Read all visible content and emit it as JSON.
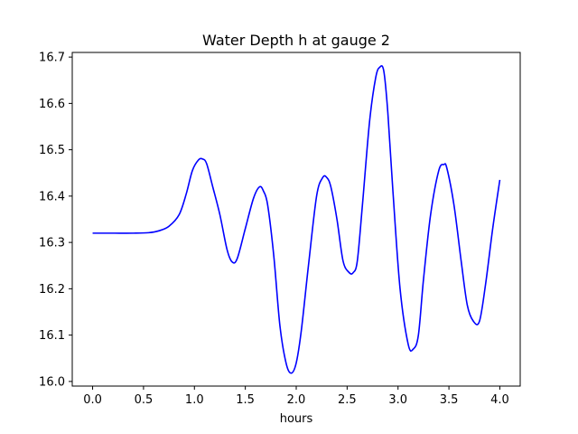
{
  "chart_data": {
    "type": "line",
    "title": "Water Depth h at gauge 2",
    "xlabel": "hours",
    "ylabel": "",
    "xlim": [
      -0.2,
      4.2
    ],
    "ylim": [
      15.99,
      16.71
    ],
    "xticks": [
      "0.0",
      "0.5",
      "1.0",
      "1.5",
      "2.0",
      "2.5",
      "3.0",
      "3.5",
      "4.0"
    ],
    "yticks": [
      "16.0",
      "16.1",
      "16.2",
      "16.3",
      "16.4",
      "16.5",
      "16.6",
      "16.7"
    ],
    "grid": false,
    "colors": {
      "line": "#0000ff"
    },
    "series": [
      {
        "x": [
          0.0,
          0.2,
          0.4,
          0.55,
          0.65,
          0.75,
          0.85,
          0.92,
          0.98,
          1.04,
          1.08,
          1.12,
          1.18,
          1.25,
          1.32,
          1.37,
          1.42,
          1.5,
          1.58,
          1.64,
          1.68,
          1.72,
          1.78,
          1.84,
          1.9,
          1.95,
          2.0,
          2.05,
          2.12,
          2.2,
          2.26,
          2.3,
          2.34,
          2.4,
          2.46,
          2.52,
          2.56,
          2.6,
          2.65,
          2.72,
          2.78,
          2.82,
          2.86,
          2.9,
          2.95,
          3.02,
          3.1,
          3.15,
          3.2,
          3.25,
          3.32,
          3.4,
          3.45,
          3.48,
          3.55,
          3.62,
          3.68,
          3.74,
          3.8,
          3.86,
          3.93,
          4.0
        ],
        "y": [
          16.32,
          16.32,
          16.32,
          16.321,
          16.325,
          16.335,
          16.36,
          16.405,
          16.455,
          16.478,
          16.48,
          16.47,
          16.42,
          16.36,
          16.285,
          16.258,
          16.265,
          16.33,
          16.395,
          16.42,
          16.41,
          16.38,
          16.27,
          16.12,
          16.04,
          16.018,
          16.04,
          16.11,
          16.25,
          16.4,
          16.44,
          16.44,
          16.42,
          16.35,
          16.26,
          16.235,
          16.235,
          16.26,
          16.38,
          16.56,
          16.655,
          16.678,
          16.67,
          16.58,
          16.41,
          16.2,
          16.08,
          16.07,
          16.1,
          16.22,
          16.36,
          16.455,
          16.468,
          16.46,
          16.38,
          16.26,
          16.165,
          16.13,
          16.13,
          16.21,
          16.33,
          16.435
        ]
      }
    ]
  }
}
